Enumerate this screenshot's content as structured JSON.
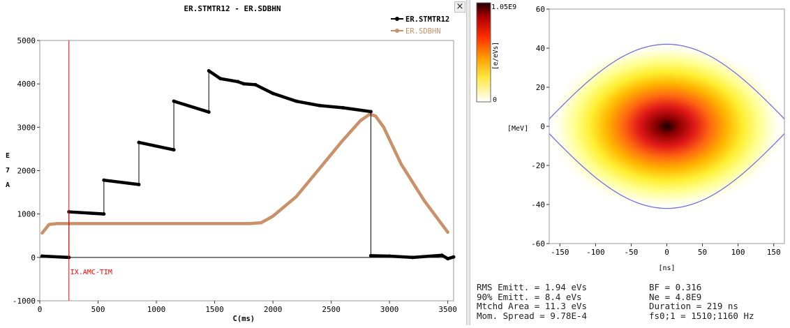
{
  "left_chart": {
    "title": "ER.STMTR12   -   ER.SDBHN",
    "legend": [
      {
        "name": "ER.STMTR12",
        "color": "#000000"
      },
      {
        "name": "ER.SDBHN",
        "color": "#c9906a"
      }
    ],
    "close_label": "×",
    "y_axis_unit": [
      "E",
      "7",
      "A"
    ],
    "x_axis_label": "C(ms)",
    "marker_label": "IX.AMC-TIM"
  },
  "right_chart": {
    "colorbar_top_label": "1.05E9",
    "colorbar_unit": "[e/eVs]",
    "colorbar_bottom_label": "0",
    "y_axis_label": "[MeV]",
    "x_axis_label": "[ns]"
  },
  "stats": {
    "rms_emitt": "RMS Emitt. = 1.94 eVs",
    "bf": "BF = 0.316",
    "emitt_90": "90% Emitt. = 8.4 eVs",
    "ne": "Ne = 4.8E9",
    "mtchd_area": "Mtchd Area = 11.3 eVs",
    "duration": "Duration = 219 ns",
    "mom_spread": "Mom. Spread = 9.78E-4",
    "fs": "fs0;1 = 1510;1160 Hz"
  },
  "chart_data": [
    {
      "type": "line",
      "title": "ER.STMTR12   -   ER.SDBHN",
      "xlabel": "C(ms)",
      "ylabel": "E 7 A",
      "xlim": [
        0,
        3550
      ],
      "ylim": [
        -1000,
        5000
      ],
      "x_ticks": [
        0,
        500,
        1000,
        1500,
        2000,
        2500,
        3000,
        3500
      ],
      "y_ticks": [
        -1000,
        0,
        1000,
        2000,
        3000,
        4000,
        5000
      ],
      "marker": {
        "x": 250,
        "label": "IX.AMC-TIM",
        "color": "#ff0000"
      },
      "grid": false,
      "legend_position": "top-right",
      "series": [
        {
          "name": "ER.STMTR12",
          "color": "#000000",
          "x": [
            20,
            250,
            250,
            550,
            550,
            850,
            850,
            1150,
            1150,
            1450,
            1450,
            1550,
            1700,
            1750,
            1850,
            2000,
            2200,
            2400,
            2600,
            2840,
            2840,
            3000,
            3200,
            3450,
            3500,
            3550
          ],
          "y": [
            30,
            0,
            1050,
            1000,
            1780,
            1680,
            2650,
            2480,
            3600,
            3350,
            4300,
            4120,
            4050,
            4000,
            3980,
            3780,
            3600,
            3500,
            3450,
            3360,
            40,
            30,
            0,
            50,
            -30,
            10
          ]
        },
        {
          "name": "ER.SDBHN",
          "color": "#c9906a",
          "x": [
            20,
            80,
            150,
            250,
            500,
            1000,
            1500,
            1800,
            1900,
            2000,
            2200,
            2400,
            2600,
            2750,
            2830,
            2880,
            2950,
            3100,
            3300,
            3500
          ],
          "y": [
            560,
            760,
            780,
            780,
            780,
            780,
            780,
            780,
            800,
            950,
            1400,
            2050,
            2700,
            3150,
            3300,
            3260,
            3000,
            2150,
            1300,
            580
          ]
        }
      ]
    },
    {
      "type": "heatmap",
      "xlabel": "[ns]",
      "ylabel": "[MeV]",
      "xlim": [
        -165,
        165
      ],
      "ylim": [
        -60,
        60
      ],
      "x_ticks": [
        -150,
        -100,
        -50,
        0,
        50,
        100,
        150
      ],
      "y_ticks": [
        -60,
        -40,
        -20,
        0,
        20,
        40,
        60
      ],
      "colorbar": {
        "min": 0,
        "max": "1.05E9",
        "unit": "[e/eVs]",
        "colors": [
          "#ffffff",
          "#ffff40",
          "#ff9900",
          "#e01010",
          "#200000"
        ]
      },
      "bucket_separatrix": {
        "color": "#7070e0",
        "half_width_ns": 175,
        "peak_mev": 42
      },
      "distribution": {
        "center": [
          0,
          0
        ],
        "sigma_ns": 54,
        "sigma_mev": 14
      }
    }
  ]
}
